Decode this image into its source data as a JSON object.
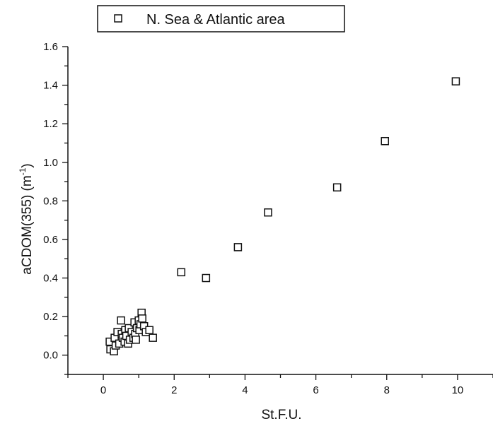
{
  "chart_data": {
    "type": "scatter",
    "title": "",
    "xlabel": "St.F.U.",
    "ylabel": "aCDOM(355) (m",
    "ylabel_sup": "-1",
    "ylabel_close": ")",
    "xlim": [
      -1,
      11
    ],
    "ylim": [
      -0.1,
      1.6
    ],
    "xticks": [
      0,
      2,
      4,
      6,
      8,
      10
    ],
    "xtick_labels": [
      "0",
      "2",
      "4",
      "6",
      "8",
      "10"
    ],
    "yticks": [
      0.0,
      0.2,
      0.4,
      0.6,
      0.8,
      1.0,
      1.2,
      1.4,
      1.6
    ],
    "ytick_labels": [
      "0.0",
      "0.2",
      "0.4",
      "0.6",
      "0.8",
      "1.0",
      "1.2",
      "1.4",
      "1.6"
    ],
    "grid": false,
    "legend_position": "top-left",
    "marker": "open-square",
    "series": [
      {
        "name": "N. Sea & Atlantic area",
        "points": [
          [
            0.18,
            0.07
          ],
          [
            0.2,
            0.03
          ],
          [
            0.3,
            0.02
          ],
          [
            0.32,
            0.09
          ],
          [
            0.35,
            0.05
          ],
          [
            0.4,
            0.12
          ],
          [
            0.45,
            0.06
          ],
          [
            0.5,
            0.18
          ],
          [
            0.52,
            0.11
          ],
          [
            0.55,
            0.09
          ],
          [
            0.6,
            0.07
          ],
          [
            0.62,
            0.13
          ],
          [
            0.65,
            0.1
          ],
          [
            0.7,
            0.06
          ],
          [
            0.72,
            0.14
          ],
          [
            0.75,
            0.08
          ],
          [
            0.8,
            0.12
          ],
          [
            0.85,
            0.09
          ],
          [
            0.88,
            0.17
          ],
          [
            0.9,
            0.11
          ],
          [
            0.92,
            0.08
          ],
          [
            0.95,
            0.14
          ],
          [
            1.0,
            0.18
          ],
          [
            1.02,
            0.13
          ],
          [
            1.05,
            0.16
          ],
          [
            1.08,
            0.22
          ],
          [
            1.1,
            0.19
          ],
          [
            1.15,
            0.15
          ],
          [
            1.2,
            0.12
          ],
          [
            1.3,
            0.13
          ],
          [
            1.4,
            0.09
          ],
          [
            2.2,
            0.43
          ],
          [
            2.9,
            0.4
          ],
          [
            3.8,
            0.56
          ],
          [
            4.65,
            0.74
          ],
          [
            6.6,
            0.87
          ],
          [
            7.95,
            1.11
          ],
          [
            9.95,
            1.42
          ]
        ]
      }
    ]
  }
}
